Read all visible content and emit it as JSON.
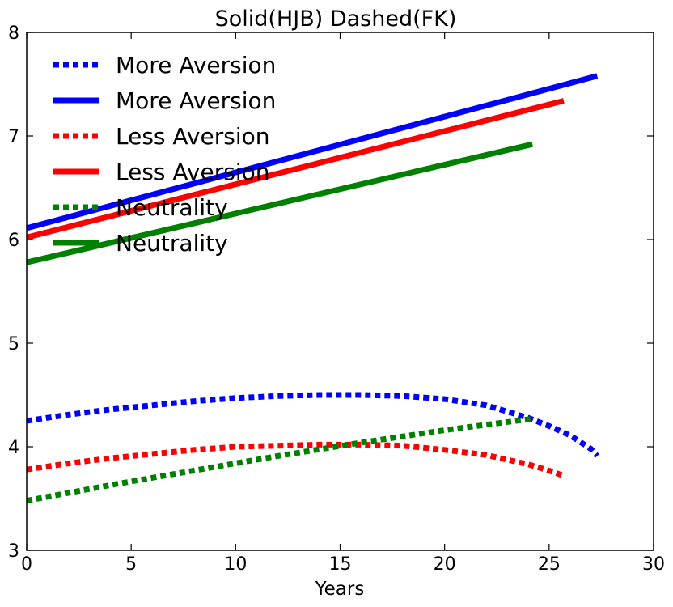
{
  "chart_data": {
    "type": "line",
    "title": "Solid(HJB) Dashed(FK)",
    "xlabel": "Years",
    "ylabel": "",
    "xlim": [
      0,
      30
    ],
    "ylim": [
      3,
      8
    ],
    "xticks": [
      0,
      5,
      10,
      15,
      20,
      25,
      30
    ],
    "yticks": [
      3,
      4,
      5,
      6,
      7,
      8
    ],
    "grid": false,
    "legend_position": "upper-left",
    "series": [
      {
        "name": "More Aversion",
        "style": "dotted",
        "color": "#0000ff",
        "x": [
          0,
          2,
          4,
          6,
          8,
          10,
          12,
          14,
          16,
          18,
          20,
          22,
          24,
          25,
          26,
          27,
          27.3
        ],
        "y": [
          4.25,
          4.31,
          4.36,
          4.4,
          4.44,
          4.47,
          4.49,
          4.5,
          4.5,
          4.49,
          4.46,
          4.4,
          4.28,
          4.2,
          4.11,
          3.98,
          3.91
        ]
      },
      {
        "name": "More Aversion",
        "style": "solid",
        "color": "#0000ff",
        "x": [
          0,
          27.3
        ],
        "y": [
          6.11,
          7.58
        ]
      },
      {
        "name": "Less Aversion",
        "style": "dotted",
        "color": "#ff0000",
        "x": [
          0,
          2,
          4,
          6,
          8,
          10,
          12,
          14,
          16,
          18,
          20,
          22,
          24,
          25,
          25.7
        ],
        "y": [
          3.78,
          3.84,
          3.89,
          3.93,
          3.97,
          4.0,
          4.01,
          4.02,
          4.02,
          4.01,
          3.97,
          3.92,
          3.83,
          3.77,
          3.72
        ]
      },
      {
        "name": "Less Aversion",
        "style": "solid",
        "color": "#ff0000",
        "x": [
          0,
          25.7
        ],
        "y": [
          6.02,
          7.34
        ]
      },
      {
        "name": "Neutrality",
        "style": "dotted",
        "color": "#008000",
        "x": [
          0,
          4,
          8,
          12,
          16,
          20,
          24.2
        ],
        "y": [
          3.48,
          3.63,
          3.77,
          3.91,
          4.04,
          4.16,
          4.27
        ]
      },
      {
        "name": "Neutrality",
        "style": "solid",
        "color": "#008000",
        "x": [
          0,
          24.2
        ],
        "y": [
          5.78,
          6.92
        ]
      }
    ]
  }
}
